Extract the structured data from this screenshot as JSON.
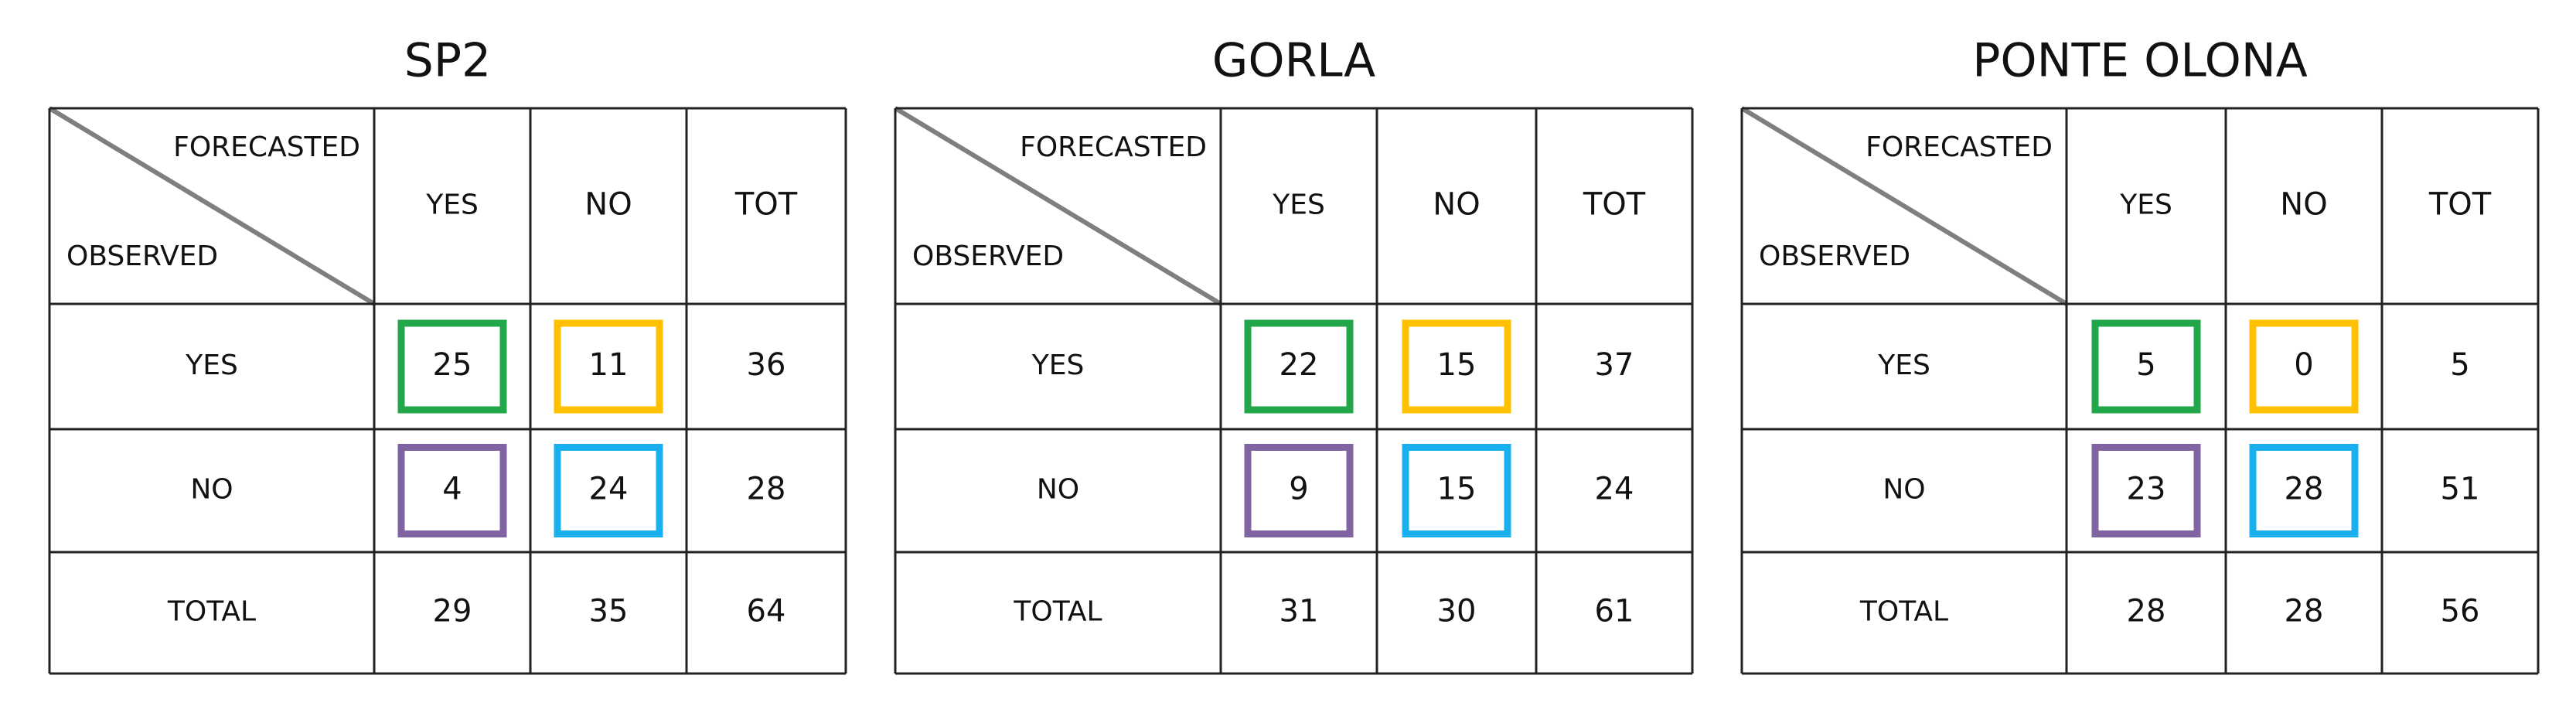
{
  "tables": [
    {
      "title": "SP2",
      "corner": {
        "top": "FORECASTED",
        "bottom": "OBSERVED"
      },
      "header": [
        "YES",
        "NO",
        "TOT"
      ],
      "rows": [
        [
          "YES",
          25,
          11,
          36
        ],
        [
          "NO",
          4,
          24,
          28
        ],
        [
          "TOTAL",
          29,
          35,
          64
        ]
      ]
    },
    {
      "title": "GORLA",
      "corner": {
        "top": "FORECASTED",
        "bottom": "OBSERVED"
      },
      "header": [
        "YES",
        "NO",
        "TOT"
      ],
      "rows": [
        [
          "YES",
          22,
          15,
          37
        ],
        [
          "NO",
          9,
          15,
          24
        ],
        [
          "TOTAL",
          31,
          30,
          61
        ]
      ]
    },
    {
      "title": "PONTE OLONA",
      "corner": {
        "top": "FORECASTED",
        "bottom": "OBSERVED"
      },
      "header": [
        "YES",
        "NO",
        "TOT"
      ],
      "rows": [
        [
          "YES",
          5,
          0,
          5
        ],
        [
          "NO",
          23,
          28,
          51
        ],
        [
          "TOTAL",
          28,
          28,
          56
        ]
      ]
    }
  ]
}
